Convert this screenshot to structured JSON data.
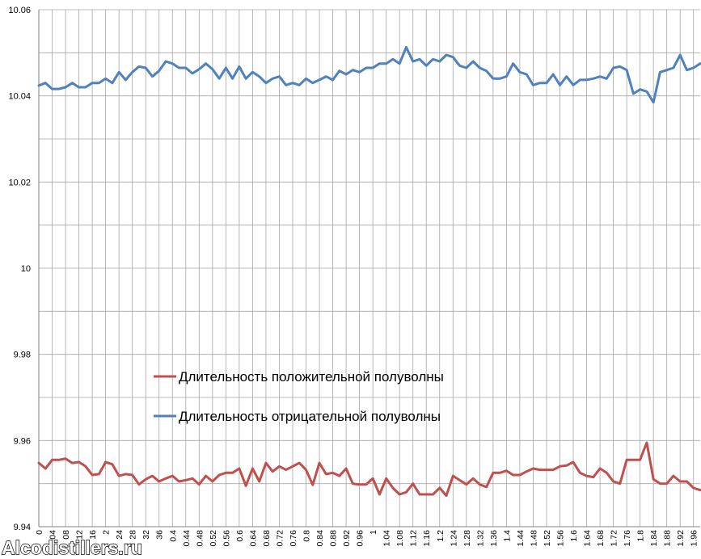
{
  "chart_data": {
    "type": "line",
    "title": "",
    "xlabel": "",
    "ylabel": "",
    "ylim": [
      9.94,
      10.06
    ],
    "xlim": [
      0,
      1.98
    ],
    "y_ticks": [
      "9.94",
      "9.96",
      "9.98",
      "10",
      "10.02",
      "10.04",
      "10.06"
    ],
    "x_tick_labels": [
      "0",
      "0.04",
      "0.08",
      "0.12",
      "0.16",
      "0.2",
      "0.24",
      "0.28",
      "0.32",
      "0.36",
      "0.4",
      "0.44",
      "0.48",
      "0.52",
      "0.56",
      "0.6",
      "0.64",
      "0.68",
      "0.72",
      "0.76",
      "0.8",
      "0.84",
      "0.88",
      "0.92",
      "0.96",
      "1",
      "1.04",
      "1.08",
      "1.12",
      "1.16",
      "1.2",
      "1.24",
      "1.28",
      "1.32",
      "1.36",
      "1.4",
      "1.44",
      "1.48",
      "1.52",
      "1.56",
      "1.6",
      "1.64",
      "1.68",
      "1.72",
      "1.76",
      "1.8",
      "1.84",
      "1.88",
      "1.92",
      "1.96"
    ],
    "x_tick_labels_on_canvas": [
      "0",
      "04",
      "08",
      "12",
      "16",
      "2",
      "24",
      "28",
      "32",
      "36",
      "0.4",
      "0.44",
      "0.48",
      "0.52",
      "0.56",
      "0.6",
      "0.64",
      "0.68",
      "0.72",
      "0.76",
      "0.8",
      "0.84",
      "0.88",
      "0.92",
      "0.96",
      "1",
      "1.04",
      "1.08",
      "1.12",
      "1.16",
      "1.2",
      "1.24",
      "1.28",
      "1.32",
      "1.36",
      "1.4",
      "1.44",
      "1.48",
      "1.52",
      "1.56",
      "1.6",
      "1.64",
      "1.68",
      "1.72",
      "1.76",
      "1.8",
      "1.84",
      "1.88",
      "1.92",
      "1.96"
    ],
    "x_step": 0.02,
    "grid": true,
    "legend_position": "lower-left-inside",
    "series": [
      {
        "name": "Длительность положительной полуволны",
        "color": "#c0504d",
        "values": [
          9.9548,
          9.9535,
          9.9555,
          9.9555,
          9.9558,
          9.9548,
          9.955,
          9.954,
          9.952,
          9.9522,
          9.955,
          9.9545,
          9.9518,
          9.9522,
          9.952,
          9.9498,
          9.951,
          9.9518,
          9.9505,
          9.9512,
          9.9518,
          9.9505,
          9.9508,
          9.9512,
          9.9498,
          9.9518,
          9.9505,
          9.952,
          9.9525,
          9.9525,
          9.9535,
          9.9495,
          9.9535,
          9.9505,
          9.9548,
          9.9528,
          9.954,
          9.9532,
          9.954,
          9.9548,
          9.9532,
          9.9497,
          9.9548,
          9.9522,
          9.9525,
          9.9518,
          9.9535,
          9.95,
          9.9498,
          9.9498,
          9.9512,
          9.9475,
          9.9512,
          9.949,
          9.9475,
          9.948,
          9.95,
          9.9475,
          9.9475,
          9.9475,
          9.949,
          9.9472,
          9.9518,
          9.9508,
          9.9498,
          9.9512,
          9.9498,
          9.9492,
          9.9525,
          9.9525,
          9.953,
          9.952,
          9.952,
          9.9528,
          9.9535,
          9.9532,
          9.9532,
          9.9532,
          9.954,
          9.9542,
          9.955,
          9.9525,
          9.9518,
          9.9515,
          9.9535,
          9.9525,
          9.9505,
          9.95,
          9.9555,
          9.9555,
          9.9555,
          9.9595,
          9.951,
          9.95,
          9.95,
          9.9518,
          9.9505,
          9.9505,
          9.949,
          9.9485
        ]
      },
      {
        "name": "Длительность отрицательной полуволны",
        "color": "#4f81bd",
        "values": [
          10.0424,
          10.043,
          10.0416,
          10.0416,
          10.042,
          10.043,
          10.042,
          10.042,
          10.043,
          10.043,
          10.044,
          10.043,
          10.0455,
          10.0437,
          10.0455,
          10.0468,
          10.0465,
          10.0445,
          10.0458,
          10.048,
          10.0475,
          10.0465,
          10.0465,
          10.0452,
          10.0462,
          10.0475,
          10.0462,
          10.044,
          10.0465,
          10.044,
          10.0468,
          10.044,
          10.0455,
          10.0445,
          10.043,
          10.044,
          10.0445,
          10.0425,
          10.043,
          10.0425,
          10.044,
          10.043,
          10.0437,
          10.0445,
          10.0437,
          10.0458,
          10.045,
          10.046,
          10.0455,
          10.0465,
          10.0465,
          10.0475,
          10.0475,
          10.0485,
          10.0475,
          10.0513,
          10.048,
          10.0485,
          10.047,
          10.0485,
          10.048,
          10.0495,
          10.049,
          10.047,
          10.0465,
          10.048,
          10.0465,
          10.0458,
          10.044,
          10.044,
          10.0445,
          10.0475,
          10.0455,
          10.045,
          10.0425,
          10.043,
          10.043,
          10.045,
          10.0425,
          10.0445,
          10.0425,
          10.0437,
          10.0437,
          10.044,
          10.0445,
          10.044,
          10.0465,
          10.0468,
          10.046,
          10.0405,
          10.0415,
          10.041,
          10.0385,
          10.0455,
          10.046,
          10.0465,
          10.0495,
          10.046,
          10.0465,
          10.0475
        ]
      }
    ]
  },
  "watermark": "Alcodistillers.ru"
}
